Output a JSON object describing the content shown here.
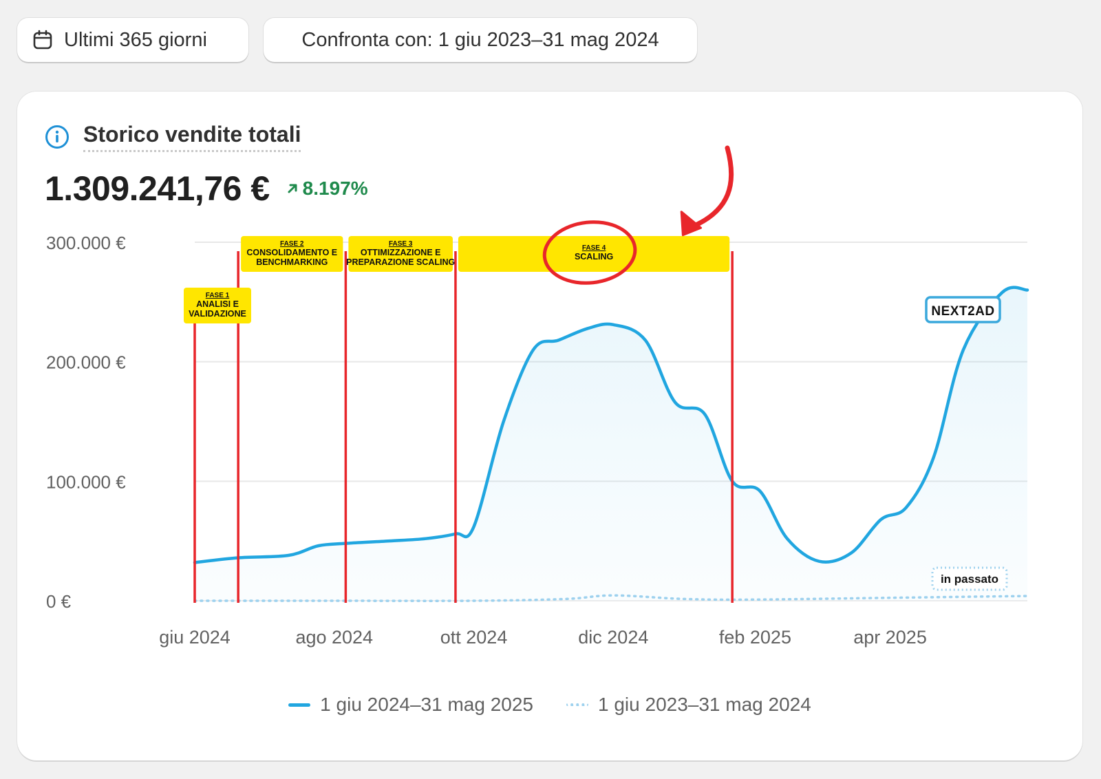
{
  "toolbar": {
    "date_range_label": "Ultimi 365 giorni",
    "compare_label": "Confronta con: 1 giu 2023–31 mag 2024",
    "calendar_icon": "calendar-icon"
  },
  "card": {
    "title": "Storico vendite totali",
    "info_icon": "info-icon",
    "total_value": "1.309.241,76 €",
    "delta_value": "8.197%",
    "delta_icon": "arrow-up-right-icon",
    "delta_color": "#1f8a4c"
  },
  "annotations": {
    "watermark_logo": "NEXT2AD",
    "past_badge": "in passato",
    "highlight_color": "#e8262b",
    "phase_color": "#ffe600",
    "phases": [
      {
        "title": "FASE 1",
        "label_lines": [
          "ANALISI E",
          "VALIDAZIONE"
        ]
      },
      {
        "title": "FASE 2",
        "label_lines": [
          "CONSOLIDAMENTO E",
          "BENCHMARKING"
        ]
      },
      {
        "title": "FASE 3",
        "label_lines": [
          "OTTIMIZZAZIONE E",
          "PREPARAZIONE SCALING"
        ]
      },
      {
        "title": "FASE 4",
        "label_lines": [
          "SCALING"
        ]
      }
    ],
    "phase_boundaries": [
      "2024-06-01",
      "2024-06-20",
      "2024-08-06",
      "2024-09-23",
      "2025-01-22"
    ]
  },
  "chart_data": {
    "type": "area",
    "x_domain": [
      "2024-06-01",
      "2025-05-31"
    ],
    "ylim": [
      0,
      300000
    ],
    "y_ticks": [
      0,
      100000,
      200000,
      300000
    ],
    "y_tick_labels": [
      "0 €",
      "100.000 €",
      "200.000 €",
      "300.000 €"
    ],
    "x_ticks": [
      "2024-06-01",
      "2024-08-01",
      "2024-10-01",
      "2024-12-01",
      "2025-02-01",
      "2025-04-01"
    ],
    "x_tick_labels": [
      "giu 2024",
      "ago 2024",
      "ott 2024",
      "dic 2024",
      "feb 2025",
      "apr 2025"
    ],
    "grid": true,
    "legend_position": "bottom-center",
    "series": [
      {
        "name": "1 giu 2024–31 mag 2025",
        "style": "solid",
        "color": "#21a6e0",
        "x": [
          "2024-06-01",
          "2024-06-20",
          "2024-07-12",
          "2024-07-25",
          "2024-08-06",
          "2024-08-25",
          "2024-09-10",
          "2024-09-23",
          "2024-10-01",
          "2024-10-14",
          "2024-10-27",
          "2024-11-07",
          "2024-11-20",
          "2024-12-01",
          "2024-12-15",
          "2024-12-28",
          "2025-01-10",
          "2025-01-22",
          "2025-02-03",
          "2025-02-15",
          "2025-03-01",
          "2025-03-15",
          "2025-03-28",
          "2025-04-08",
          "2025-04-20",
          "2025-05-03",
          "2025-05-20",
          "2025-05-31"
        ],
        "y": [
          32000,
          36000,
          38000,
          46000,
          48000,
          50000,
          52000,
          56000,
          62000,
          150000,
          210000,
          218000,
          228000,
          231000,
          218000,
          166000,
          156000,
          100000,
          92000,
          52000,
          33000,
          40000,
          68000,
          78000,
          120000,
          210000,
          258000,
          260000
        ]
      },
      {
        "name": "1 giu 2023–31 mag 2024",
        "style": "dotted",
        "color": "#9dd1ee",
        "x": [
          "2024-06-01",
          "2024-08-01",
          "2024-10-01",
          "2024-11-10",
          "2024-12-01",
          "2025-01-01",
          "2025-02-01",
          "2025-04-01",
          "2025-05-31"
        ],
        "y": [
          0,
          0,
          0,
          1500,
          4500,
          1500,
          1000,
          2500,
          4000
        ]
      }
    ]
  }
}
